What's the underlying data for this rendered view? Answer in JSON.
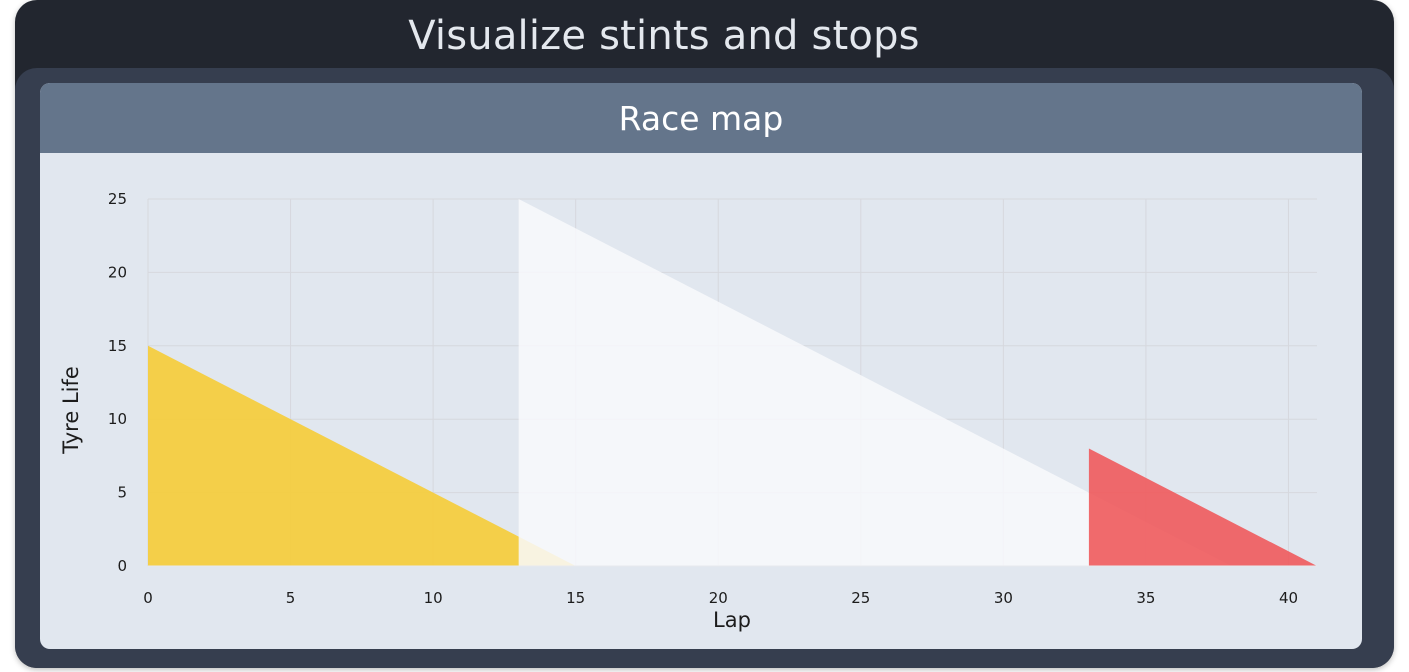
{
  "app": {
    "title": "Visualize stints and stops"
  },
  "card": {
    "title": "Race map"
  },
  "colors": {
    "window_bg": "#22262f",
    "panel_bg": "#363e4f",
    "card_header_bg": "#64758b",
    "plot_bg": "#e1e7ef",
    "stint_1": "#f5cd3b",
    "stint_2": "#f8f9fb",
    "stint_3": "#ef5a5c"
  },
  "chart_data": {
    "type": "area",
    "xlabel": "Lap",
    "ylabel": "Tyre Life",
    "xlim": [
      0,
      41
    ],
    "ylim": [
      0,
      25
    ],
    "x_ticks": [
      0,
      5,
      10,
      15,
      20,
      25,
      30,
      35,
      40
    ],
    "y_ticks": [
      0,
      5,
      10,
      15,
      20,
      25
    ],
    "grid": true,
    "series": [
      {
        "color": "#f5cd3b",
        "opacity": 0.92,
        "points": [
          [
            0,
            15
          ],
          [
            15,
            0
          ],
          [
            0,
            0
          ]
        ]
      },
      {
        "color": "#f8f9fb",
        "opacity": 0.85,
        "points": [
          [
            13,
            25
          ],
          [
            38,
            0
          ],
          [
            13,
            0
          ]
        ]
      },
      {
        "color": "#ef5a5c",
        "opacity": 0.9,
        "points": [
          [
            33,
            8
          ],
          [
            41,
            0
          ],
          [
            33,
            0
          ]
        ]
      }
    ]
  }
}
